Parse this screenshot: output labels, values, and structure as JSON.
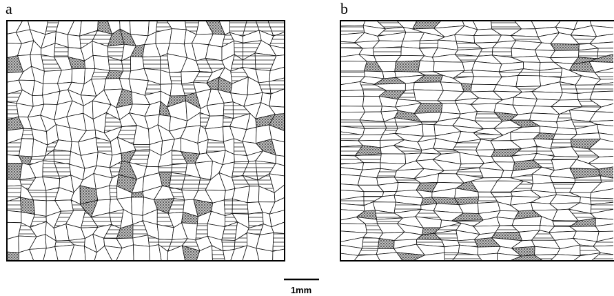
{
  "panels": [
    {
      "label": "a"
    },
    {
      "label": "b"
    }
  ],
  "scale_bar": {
    "label": "1mm"
  }
}
